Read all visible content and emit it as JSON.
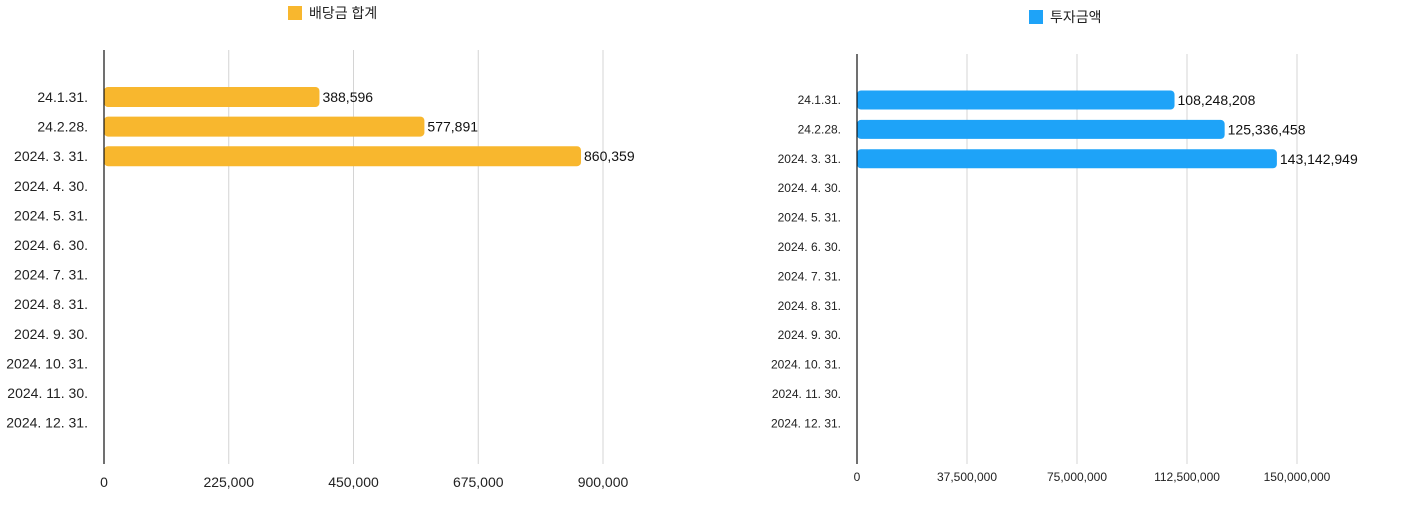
{
  "chart_data": [
    {
      "type": "bar",
      "orientation": "horizontal",
      "categories": [
        "24.1.31.",
        "24.2.28.",
        "2024. 3. 31.",
        "2024. 4. 30.",
        "2024. 5. 31.",
        "2024. 6. 30.",
        "2024. 7. 31.",
        "2024. 8. 31.",
        "2024. 9. 30.",
        "2024. 10. 31.",
        "2024. 11. 30.",
        "2024. 12. 31."
      ],
      "series": [
        {
          "name": "배당금 합계",
          "color": "#F8B72E",
          "values": [
            388596,
            577891,
            860359,
            null,
            null,
            null,
            null,
            null,
            null,
            null,
            null,
            null
          ],
          "labels": [
            "388,596",
            "577,891",
            "860,359",
            "",
            "",
            "",
            "",
            "",
            "",
            "",
            "",
            ""
          ]
        }
      ],
      "xlim": [
        0,
        900000
      ],
      "xticks": [
        0,
        225000,
        450000,
        675000,
        900000
      ],
      "xtick_labels": [
        "0",
        "225,000",
        "450,000",
        "675,000",
        "900,000"
      ],
      "legend_position": "top",
      "grid": "vertical"
    },
    {
      "type": "bar",
      "orientation": "horizontal",
      "categories": [
        "24.1.31.",
        "24.2.28.",
        "2024. 3. 31.",
        "2024. 4. 30.",
        "2024. 5. 31.",
        "2024. 6. 30.",
        "2024. 7. 31.",
        "2024. 8. 31.",
        "2024. 9. 30.",
        "2024. 10. 31.",
        "2024. 11. 30.",
        "2024. 12. 31."
      ],
      "series": [
        {
          "name": "투자금액",
          "color": "#1EA3F8",
          "values": [
            108248208,
            125336458,
            143142949,
            null,
            null,
            null,
            null,
            null,
            null,
            null,
            null,
            null
          ],
          "labels": [
            "108,248,208",
            "125,336,458",
            "143,142,949",
            "",
            "",
            "",
            "",
            "",
            "",
            "",
            "",
            ""
          ]
        }
      ],
      "xlim": [
        0,
        150000000
      ],
      "xticks": [
        0,
        37500000,
        75000000,
        112500000,
        150000000
      ],
      "xtick_labels": [
        "0",
        "37,500,000",
        "75,000,000",
        "112,500,000",
        "150,000,000"
      ],
      "legend_position": "top",
      "grid": "vertical"
    }
  ]
}
